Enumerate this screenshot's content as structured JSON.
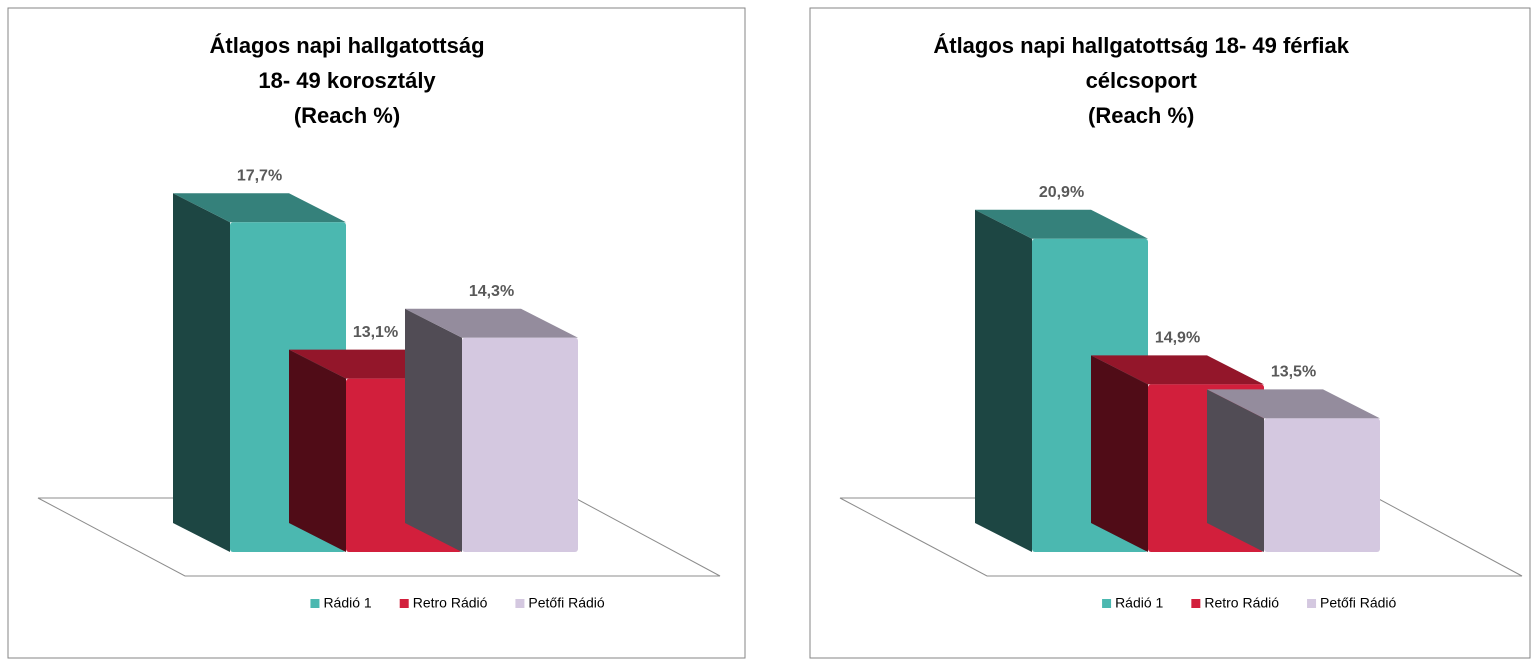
{
  "chart_data": [
    {
      "type": "bar3d",
      "title": [
        "Átlagos napi hallgatottság",
        "18- 49 korosztály",
        "(Reach %)"
      ],
      "ylim": [
        8,
        18
      ],
      "series": [
        {
          "name": "Rádió 1",
          "color": "#4bb8b0",
          "values": [
            17.7
          ],
          "value_labels": [
            "17,7%"
          ]
        },
        {
          "name": "Retro Rádió",
          "color": "#d21f3c",
          "values": [
            13.1
          ],
          "value_labels": [
            "13,1%"
          ]
        },
        {
          "name": "Petőfi Rádió",
          "color": "#d4c8e0",
          "values": [
            14.3
          ],
          "value_labels": [
            "14,3%"
          ]
        }
      ]
    },
    {
      "type": "bar3d",
      "title": [
        "Átlagos napi hallgatottság 18- 49 férfiak",
        "célcsoport",
        "(Reach %)"
      ],
      "ylim": [
        8,
        22
      ],
      "series": [
        {
          "name": "Rádió 1",
          "color": "#4bb8b0",
          "values": [
            20.9
          ],
          "value_labels": [
            "20,9%"
          ]
        },
        {
          "name": "Retro Rádió",
          "color": "#d21f3c",
          "values": [
            14.9
          ],
          "value_labels": [
            "14,9%"
          ]
        },
        {
          "name": "Petőfi Rádió",
          "color": "#d4c8e0",
          "values": [
            13.5
          ],
          "value_labels": [
            "13,5%"
          ]
        }
      ]
    }
  ]
}
